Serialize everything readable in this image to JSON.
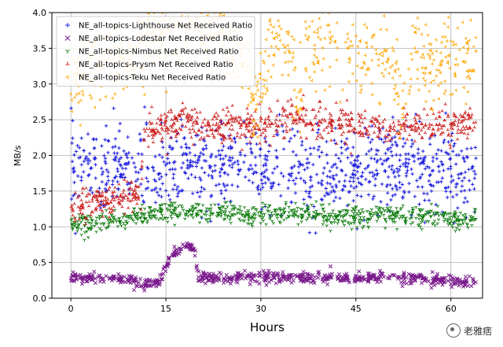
{
  "chart_data": {
    "type": "scatter",
    "title": "",
    "xlabel": "Hours",
    "ylabel": "MB/s",
    "xlim": [
      -3,
      65
    ],
    "ylim": [
      0,
      4.0
    ],
    "xticks": [
      0,
      15,
      30,
      45,
      60
    ],
    "yticks": [
      0.0,
      0.5,
      1.0,
      1.5,
      2.0,
      2.5,
      3.0,
      3.5,
      4.0
    ],
    "grid": true,
    "legend_position": "top-left",
    "series": [
      {
        "name": "NE_all-topics-Lighthouse Net Received Ratio",
        "color": "#1f1fe0",
        "marker": "+",
        "x": [
          0,
          4,
          8,
          11,
          11.5,
          14,
          18,
          22,
          26,
          30,
          34,
          38,
          42,
          46,
          50,
          54,
          58,
          62,
          64
        ],
        "y": [
          1.9,
          1.8,
          1.8,
          1.85,
          1.8,
          1.7,
          1.9,
          1.75,
          1.9,
          1.8,
          1.9,
          1.7,
          1.85,
          1.75,
          1.9,
          1.8,
          1.8,
          1.75,
          1.8
        ]
      },
      {
        "name": "NE_all-topics-Lodestar Net Received Ratio",
        "color": "#7a1a8c",
        "marker": "x",
        "x": [
          0,
          4,
          8,
          12,
          14,
          16,
          18,
          19.5,
          20,
          25,
          30,
          35,
          40,
          45,
          50,
          55,
          60,
          64
        ],
        "y": [
          0.3,
          0.28,
          0.28,
          0.2,
          0.25,
          0.6,
          0.75,
          0.7,
          0.28,
          0.27,
          0.3,
          0.28,
          0.3,
          0.27,
          0.3,
          0.28,
          0.25,
          0.22
        ]
      },
      {
        "name": "NE_all-topics-Nimbus Net Received Ratio",
        "color": "#0a7a0a",
        "marker": "1",
        "x": [
          0,
          4,
          8,
          12,
          16,
          20,
          24,
          28,
          32,
          36,
          40,
          44,
          48,
          52,
          56,
          60,
          64
        ],
        "y": [
          1.05,
          1.05,
          1.1,
          1.2,
          1.2,
          1.2,
          1.2,
          1.15,
          1.2,
          1.2,
          1.15,
          1.15,
          1.15,
          1.15,
          1.15,
          1.1,
          1.1
        ]
      },
      {
        "name": "NE_all-topics-Prysm Net Received Ratio",
        "color": "#cc1a1a",
        "marker": "2",
        "x": [
          0,
          4,
          8,
          11,
          11.5,
          14,
          18,
          22,
          26,
          30,
          34,
          38,
          42,
          46,
          50,
          54,
          58,
          62,
          64
        ],
        "y": [
          1.3,
          1.35,
          1.4,
          1.45,
          2.3,
          2.4,
          2.45,
          2.4,
          2.45,
          2.4,
          2.5,
          2.45,
          2.45,
          2.4,
          2.4,
          2.4,
          2.4,
          2.45,
          2.4
        ]
      },
      {
        "name": "NE_all-topics-Teku Net Received Ratio",
        "color": "#ffa500",
        "marker": "3",
        "x": [
          0,
          4,
          8,
          11.5,
          14,
          18,
          22,
          26,
          29.5,
          30,
          32,
          34,
          36,
          37,
          38,
          42,
          46,
          50,
          53,
          54,
          56,
          60,
          64
        ],
        "y": [
          3.0,
          3.2,
          3.3,
          3.6,
          3.7,
          3.8,
          3.8,
          3.6,
          2.6,
          3.0,
          3.6,
          3.7,
          2.7,
          3.4,
          3.6,
          3.7,
          3.3,
          3.4,
          2.5,
          3.6,
          3.3,
          3.3,
          3.4
        ]
      }
    ]
  },
  "watermark": {
    "text": "老雅痞",
    "icon": "wechat-icon"
  }
}
